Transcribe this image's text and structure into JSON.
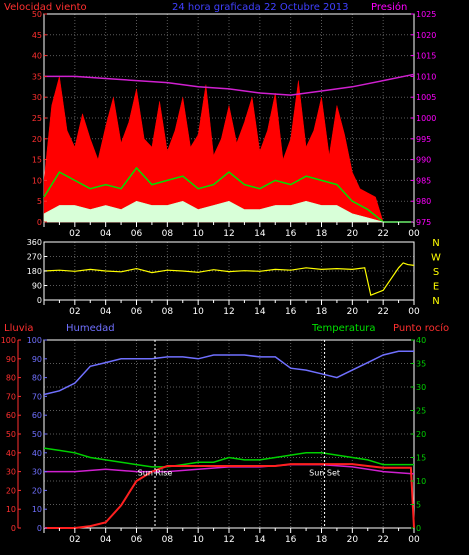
{
  "header": {
    "wind_label": "Velocidad viento",
    "title": "24 hora graficada  22 Octubre 2013",
    "pressure_label": "Presión"
  },
  "colors": {
    "wind": "#ff0000",
    "gust": "#ff0000",
    "avg_wind": "#00e000",
    "min_wind": "#d8ffd8",
    "pressure": "#d020d0",
    "direction": "#ffff00",
    "rain": "#ff2020",
    "humidity": "#7070ff",
    "temperature": "#00d000",
    "dewpoint": "#d020d0",
    "axis": "#ffffff",
    "grid": "#5a5a5a",
    "left_axis": "#ff3030",
    "right_axis": "#ff00ff",
    "hum_axis": "#7070ff",
    "temp_axis": "#00d000"
  },
  "chart_data": [
    {
      "type": "line",
      "title": "24 hora graficada  22 Octubre 2013",
      "x_tick_labels": [
        "02",
        "04",
        "06",
        "08",
        "10",
        "12",
        "14",
        "16",
        "18",
        "20",
        "22",
        "00"
      ],
      "xlim_hours": [
        0,
        24
      ],
      "left_axis": {
        "label": "Velocidad viento",
        "ylim": [
          0,
          50
        ],
        "ticks": [
          0,
          5,
          10,
          15,
          20,
          25,
          30,
          35,
          40,
          45,
          50
        ]
      },
      "right_axis": {
        "label": "Presión",
        "ylim": [
          975,
          1025
        ],
        "ticks": [
          975,
          980,
          985,
          990,
          995,
          1000,
          1005,
          1010,
          1015,
          1020,
          1025
        ]
      },
      "grid": true,
      "series": [
        {
          "role": "gust",
          "x": [
            0,
            0.5,
            1,
            1.5,
            2,
            2.5,
            3,
            3.5,
            4,
            4.5,
            5,
            5.5,
            6,
            6.5,
            7,
            7.5,
            8,
            8.5,
            9,
            9.5,
            10,
            10.5,
            11,
            11.5,
            12,
            12.5,
            13,
            13.5,
            14,
            14.5,
            15,
            15.5,
            16,
            16.5,
            17,
            17.5,
            18,
            18.5,
            19,
            19.5,
            20,
            20.5,
            21,
            21.5,
            22,
            22.5,
            23,
            23.5,
            24
          ],
          "y": [
            10,
            28,
            35,
            22,
            18,
            26,
            20,
            15,
            23,
            30,
            19,
            24,
            32,
            20,
            18,
            29,
            17,
            22,
            30,
            18,
            21,
            33,
            16,
            20,
            28,
            19,
            24,
            30,
            17,
            22,
            31,
            15,
            20,
            34,
            18,
            22,
            30,
            16,
            28,
            21,
            12,
            8,
            7,
            6,
            0,
            0,
            0,
            0,
            0
          ]
        },
        {
          "role": "avg_wind",
          "x": [
            0,
            1,
            2,
            3,
            4,
            5,
            6,
            7,
            8,
            9,
            10,
            11,
            12,
            13,
            14,
            15,
            16,
            17,
            18,
            19,
            20,
            21,
            22,
            23,
            24
          ],
          "y": [
            6,
            12,
            10,
            8,
            9,
            8,
            13,
            9,
            10,
            11,
            8,
            9,
            12,
            9,
            8,
            10,
            9,
            11,
            10,
            9,
            5,
            3,
            0,
            0,
            0
          ]
        },
        {
          "role": "min_wind",
          "x": [
            0,
            1,
            2,
            3,
            4,
            5,
            6,
            7,
            8,
            9,
            10,
            11,
            12,
            13,
            14,
            15,
            16,
            17,
            18,
            19,
            20,
            21,
            22,
            23,
            24
          ],
          "y": [
            2,
            4,
            4,
            3,
            4,
            3,
            5,
            4,
            4,
            5,
            3,
            4,
            5,
            3,
            3,
            4,
            4,
            5,
            4,
            4,
            2,
            1,
            0,
            0,
            0
          ]
        },
        {
          "role": "pressure",
          "x": [
            0,
            2,
            4,
            6,
            8,
            10,
            12,
            14,
            16,
            18,
            20,
            22,
            24
          ],
          "y": [
            1010,
            1010,
            1009.5,
            1009,
            1008.5,
            1007.5,
            1007,
            1006,
            1005.5,
            1006.5,
            1007.5,
            1009,
            1010.5
          ]
        }
      ]
    },
    {
      "type": "line",
      "title": "",
      "x_tick_labels": [
        "02",
        "04",
        "06",
        "08",
        "10",
        "12",
        "14",
        "16",
        "18",
        "20",
        "22",
        "00"
      ],
      "left_axis": {
        "ylim": [
          0,
          360
        ],
        "ticks": [
          0,
          90,
          180,
          270,
          360
        ]
      },
      "right_axis_letters": [
        "N",
        "W",
        "S",
        "E",
        "N"
      ],
      "series": [
        {
          "role": "direction",
          "x": [
            0,
            1,
            2,
            3,
            4,
            5,
            6,
            7,
            8,
            9,
            10,
            11,
            12,
            13,
            14,
            15,
            16,
            17,
            18,
            19,
            20,
            20.8,
            21.2,
            22,
            23,
            23.3,
            23.6,
            24
          ],
          "y": [
            180,
            185,
            178,
            190,
            180,
            175,
            195,
            170,
            185,
            180,
            172,
            188,
            176,
            182,
            178,
            190,
            185,
            200,
            190,
            195,
            190,
            200,
            30,
            60,
            200,
            230,
            220,
            215
          ]
        }
      ]
    },
    {
      "type": "line",
      "title": "",
      "x_tick_labels": [
        "02",
        "04",
        "06",
        "08",
        "10",
        "12",
        "14",
        "16",
        "18",
        "20",
        "22",
        "00"
      ],
      "left_axis": {
        "label": "Lluvia",
        "ylim": [
          0,
          100
        ],
        "ticks": [
          0,
          10,
          20,
          30,
          40,
          50,
          60,
          70,
          80,
          90,
          100
        ]
      },
      "hum_axis": {
        "label": "Humedad",
        "ylim": [
          0,
          100
        ],
        "ticks": [
          0,
          10,
          20,
          30,
          40,
          50,
          60,
          70,
          80,
          90,
          100
        ]
      },
      "right_axis": {
        "label": "Temperatura",
        "ylim": [
          0,
          40
        ],
        "ticks": [
          0,
          5,
          10,
          15,
          20,
          25,
          30,
          35,
          40
        ]
      },
      "dew_label": "Punto rocío",
      "annotations": [
        {
          "text": "Sun Rise",
          "hour": 7.2
        },
        {
          "text": "Sun Set",
          "hour": 18.2
        }
      ],
      "series": [
        {
          "role": "humidity",
          "x": [
            0,
            1,
            2,
            3,
            4,
            5,
            6,
            7,
            8,
            9,
            10,
            11,
            12,
            13,
            14,
            15,
            16,
            17,
            18,
            19,
            20,
            21,
            22,
            23,
            24
          ],
          "y": [
            71,
            73,
            77,
            86,
            88,
            90,
            90,
            90,
            91,
            91,
            90,
            92,
            92,
            92,
            91,
            91,
            85,
            84,
            82,
            80,
            84,
            88,
            92,
            94,
            94
          ]
        },
        {
          "role": "temperature",
          "x": [
            0,
            1,
            2,
            3,
            4,
            5,
            6,
            7,
            8,
            9,
            10,
            11,
            12,
            13,
            14,
            15,
            16,
            17,
            18,
            19,
            20,
            21,
            22,
            23,
            24
          ],
          "y": [
            17,
            16.5,
            16,
            15,
            14.5,
            14,
            13.5,
            13,
            13,
            13.5,
            14,
            14,
            15,
            14.5,
            14.5,
            15,
            15.5,
            16,
            16,
            15.5,
            15,
            14.5,
            13.5,
            13.5,
            13.5
          ]
        },
        {
          "role": "dewpoint",
          "x": [
            0,
            2,
            4,
            6,
            8,
            10,
            12,
            14,
            16,
            18,
            20,
            22,
            24
          ],
          "y": [
            12,
            12,
            12.5,
            12,
            12,
            12.5,
            13,
            13,
            13.5,
            13.5,
            13,
            12,
            11.5
          ]
        },
        {
          "role": "rain",
          "x": [
            0,
            1,
            2,
            3,
            4,
            5,
            6,
            7,
            8,
            9,
            10,
            11,
            12,
            13,
            14,
            15,
            16,
            17,
            18,
            19,
            20,
            21,
            22,
            23,
            23.8,
            24
          ],
          "y": [
            0,
            0,
            0,
            1,
            3,
            12,
            25,
            30,
            33,
            33,
            33,
            33,
            33,
            33,
            33,
            33,
            34,
            34,
            34,
            34,
            34,
            33,
            32,
            32,
            32,
            0
          ]
        }
      ]
    }
  ]
}
